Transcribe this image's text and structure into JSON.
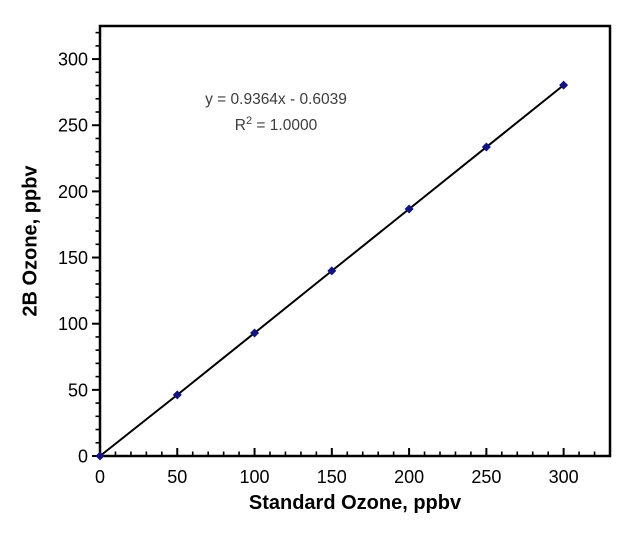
{
  "chart_data": {
    "type": "scatter",
    "title": "",
    "xlabel": "Standard Ozone, ppbv",
    "ylabel": "2B Ozone, ppbv",
    "x": [
      0,
      50,
      100,
      150,
      200,
      250,
      300
    ],
    "y": [
      0,
      46.2,
      93.0,
      139.9,
      186.7,
      233.5,
      280.3
    ],
    "trendline": {
      "slope": 0.9364,
      "intercept": -0.6039,
      "equation_label": "y = 0.9364x - 0.6039",
      "r2_base": "R",
      "r2_sup": "2",
      "r2_rest": " = 1.0000"
    },
    "xlim": [
      0,
      330
    ],
    "ylim": [
      0,
      325
    ],
    "x_major_ticks": [
      0,
      50,
      100,
      150,
      200,
      250,
      300
    ],
    "y_major_ticks": [
      0,
      50,
      100,
      150,
      200,
      250,
      300
    ],
    "minor_tick_step": 10,
    "grid": false,
    "legend": false,
    "marker_shape": "diamond",
    "colors": {
      "marker": "#14147e",
      "trendline": "#000000",
      "frame": "#000000",
      "tick_text": "#000000",
      "axis_title_text": "#000000",
      "annotation_text": "#3d3d3d",
      "background": "#ffffff"
    }
  }
}
